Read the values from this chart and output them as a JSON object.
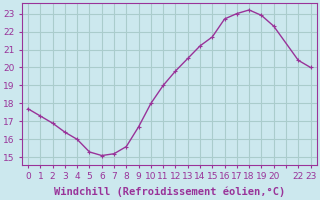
{
  "x": [
    0,
    1,
    2,
    3,
    4,
    5,
    6,
    7,
    8,
    9,
    10,
    11,
    12,
    13,
    14,
    15,
    16,
    17,
    18,
    19,
    20,
    22,
    23
  ],
  "y": [
    17.7,
    17.3,
    16.9,
    16.4,
    16.0,
    15.3,
    15.1,
    15.2,
    15.6,
    16.7,
    18.0,
    19.0,
    19.8,
    20.5,
    21.2,
    21.7,
    22.7,
    23.0,
    23.2,
    22.9,
    22.3,
    20.4,
    20.0
  ],
  "line_color": "#993399",
  "marker": "+",
  "marker_size": 3,
  "marker_linewidth": 0.8,
  "bg_color": "#cce8ee",
  "grid_color": "#aacccc",
  "xlabel": "Windchill (Refroidissement éolien,°C)",
  "xlabel_color": "#993399",
  "tick_color": "#993399",
  "ylim": [
    14.6,
    23.6
  ],
  "xlim": [
    -0.5,
    23.5
  ],
  "yticks": [
    15,
    16,
    17,
    18,
    19,
    20,
    21,
    22,
    23
  ],
  "font_size": 6.5,
  "label_font_size": 7.5,
  "linewidth": 1.0
}
